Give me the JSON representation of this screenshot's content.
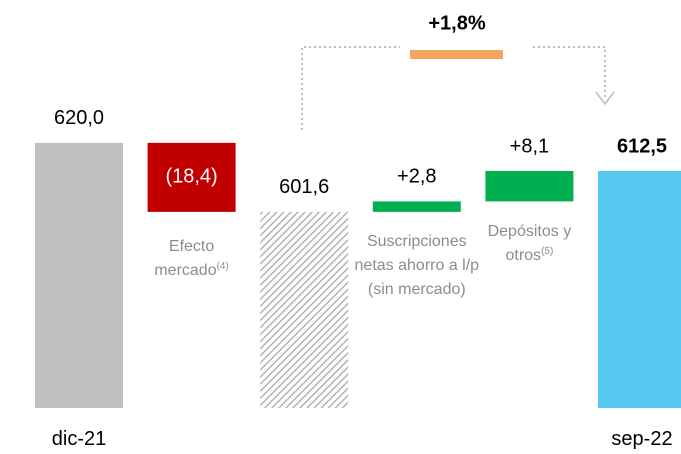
{
  "chart_data": {
    "type": "waterfall",
    "categories": [
      "dic-21",
      "Efecto mercado",
      null,
      "Suscripciones netas ahorro a l/p (sin mercado)",
      "Depósitos y otros",
      "sep-22"
    ],
    "category_notes": [
      null,
      "(4)",
      null,
      null,
      "(5)",
      null
    ],
    "kinds": [
      "total",
      "delta",
      "total",
      "delta",
      "delta",
      "total"
    ],
    "values": [
      620.0,
      -18.4,
      601.6,
      2.8,
      8.1,
      612.5
    ],
    "value_labels": [
      "620,0",
      "(18,4)",
      "601,6",
      "+2,8",
      "+8,1",
      "612,5"
    ],
    "colors": [
      "#bfbfbf",
      "#c00000",
      "hatch",
      "#00b050",
      "#00b050",
      "#56c8f0"
    ],
    "annotation": "+1,8%",
    "annotation_color": "#f4a460",
    "ylim": [
      549.3,
      658.1
    ]
  }
}
